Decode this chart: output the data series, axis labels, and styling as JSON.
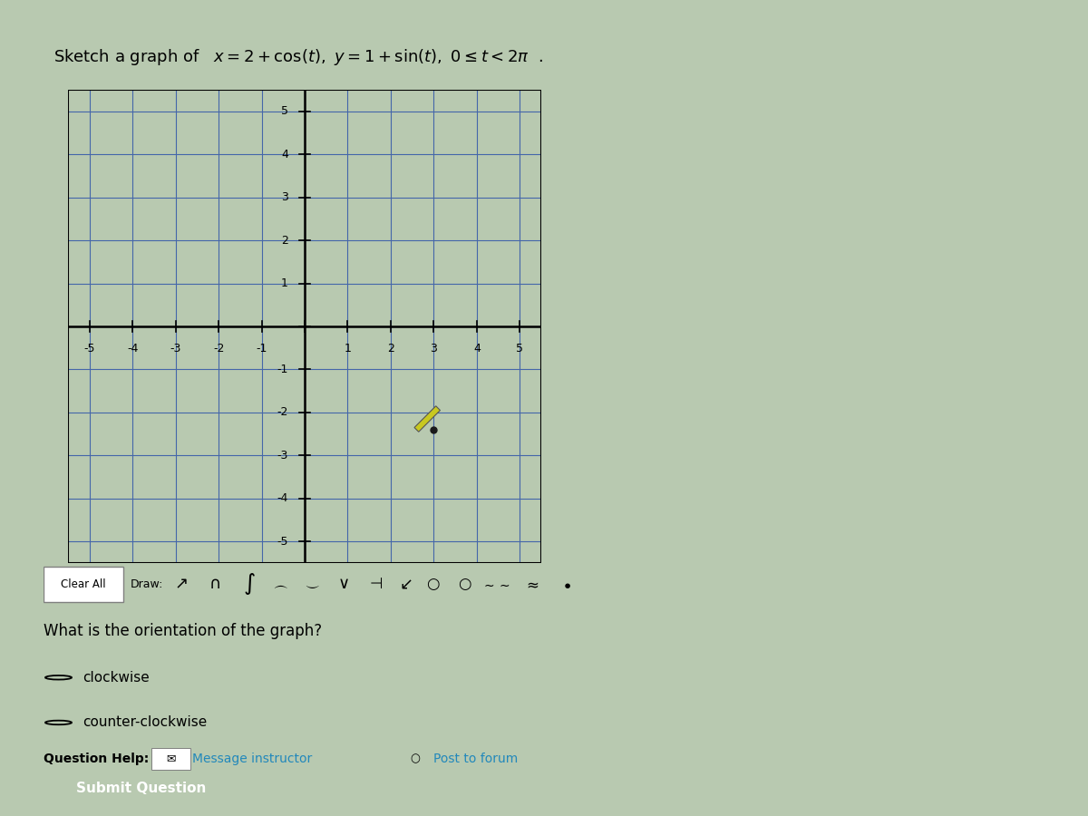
{
  "bg_color": "#b8c9b0",
  "grid_bg": "#dce8d8",
  "grid_color": "#4466aa",
  "axis_color": "#000000",
  "xlim": [
    -5.5,
    5.5
  ],
  "ylim": [
    -5.5,
    5.5
  ],
  "xticks": [
    -5,
    -4,
    -3,
    -2,
    -1,
    0,
    1,
    2,
    3,
    4,
    5
  ],
  "yticks": [
    -5,
    -4,
    -3,
    -2,
    -1,
    0,
    1,
    2,
    3,
    4,
    5
  ],
  "xlabel_vals": [
    -5,
    -4,
    -3,
    -2,
    -1,
    1,
    2,
    3,
    4,
    5
  ],
  "ylabel_vals": [
    -5,
    -4,
    -3,
    -2,
    -1,
    1,
    2,
    3,
    4,
    5
  ],
  "question_text": "What is the orientation of the graph?",
  "option1": "clockwise",
  "option2": "counter-clockwise",
  "question_help_label": "Question Help:",
  "msg_instructor": "Message instructor",
  "post_forum": "Post to forum",
  "submit_text": "Submit Question",
  "submit_color": "#3a8fa0",
  "clear_all_text": "Clear All",
  "draw_text": "Draw:",
  "pencil_x": 3.0,
  "pencil_y": -2.4
}
